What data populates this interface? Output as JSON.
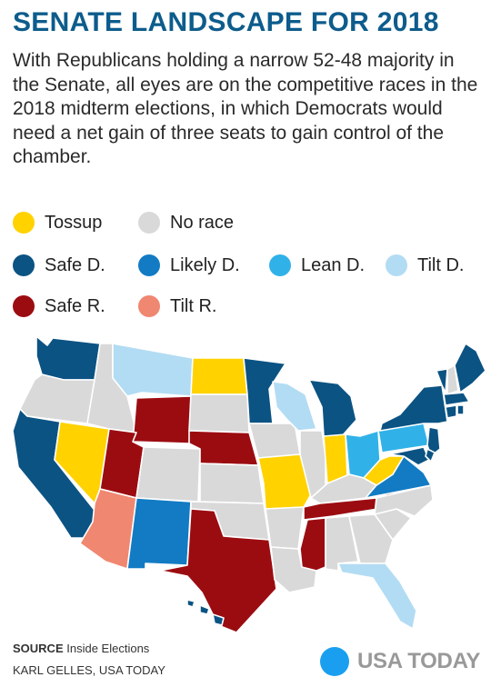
{
  "header": {
    "title": "SENATE LANDSCAPE FOR 2018",
    "intro": "With Republicans holding a narrow 52-48 majority in the Senate, all eyes are on the competitive races in the 2018 midterm elections, in which Democrats would need a net gain of three seats to gain control of the chamber."
  },
  "legend": [
    [
      {
        "key": "tossup",
        "label": "Tossup",
        "color": "#ffd200"
      },
      {
        "key": "no_race",
        "label": "No race",
        "color": "#d9d9d9"
      }
    ],
    [
      {
        "key": "safe_d",
        "label": "Safe D.",
        "color": "#0b5383"
      },
      {
        "key": "likely_d",
        "label": "Likely D.",
        "color": "#127bc4"
      },
      {
        "key": "lean_d",
        "label": "Lean D.",
        "color": "#30b2e8"
      },
      {
        "key": "tilt_d",
        "label": "Tilt D.",
        "color": "#b2dcf3"
      }
    ],
    [
      {
        "key": "safe_r",
        "label": "Safe R.",
        "color": "#9b0c11"
      },
      {
        "key": "tilt_r",
        "label": "Tilt R.",
        "color": "#f08770"
      }
    ]
  ],
  "map": {
    "states": {
      "WA": "safe_d",
      "OR": "no_race",
      "CA": "safe_d",
      "NV": "tossup",
      "ID": "no_race",
      "MT": "tilt_d",
      "WY": "safe_r",
      "UT": "safe_r",
      "AZ": "tilt_r",
      "CO": "no_race",
      "NM": "likely_d",
      "ND": "tossup",
      "SD": "no_race",
      "NE": "safe_r",
      "KS": "no_race",
      "OK": "no_race",
      "TX": "safe_r",
      "MN": "safe_d",
      "IA": "no_race",
      "MO": "tossup",
      "AR": "no_race",
      "LA": "no_race",
      "WI": "tilt_d",
      "IL": "no_race",
      "MI": "safe_d",
      "IN": "tossup",
      "OH": "lean_d",
      "KY": "no_race",
      "TN": "safe_r",
      "MS": "safe_r",
      "AL": "no_race",
      "GA": "no_race",
      "FL": "tilt_d",
      "SC": "no_race",
      "NC": "no_race",
      "VA": "likely_d",
      "WV": "tossup",
      "PA": "lean_d",
      "NY": "safe_d",
      "NJ": "safe_d",
      "VT": "safe_d",
      "NH": "no_race",
      "ME": "safe_d",
      "MA": "safe_d",
      "CT": "safe_d",
      "RI": "safe_d",
      "MD": "safe_d",
      "DE": "safe_d",
      "HI": "safe_d"
    }
  },
  "footer": {
    "source_label": "SOURCE",
    "source_text": "Inside Elections",
    "byline": "KARL GELLES, USA TODAY",
    "brand": "USA TODAY",
    "brand_color": "#1a9ff0"
  }
}
